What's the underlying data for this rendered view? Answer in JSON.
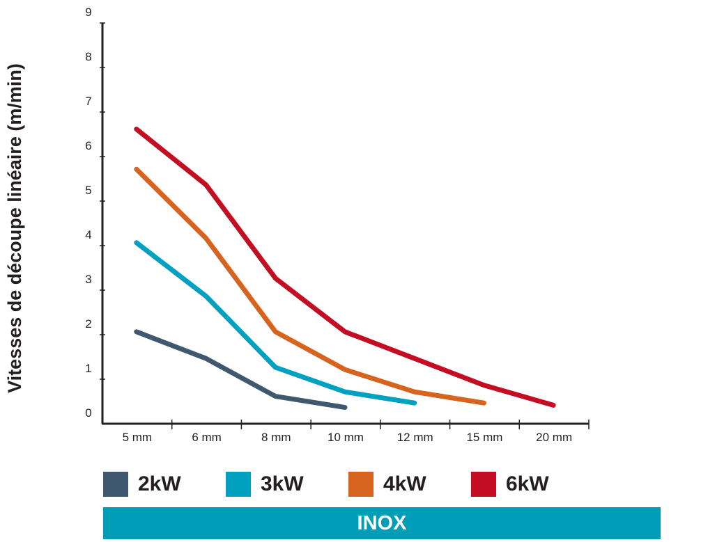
{
  "chart_data": {
    "type": "line",
    "categories": [
      "5 mm",
      "6 mm",
      "8 mm",
      "10 mm",
      "12 mm",
      "15 mm",
      "20 mm"
    ],
    "ylabel": "Vitesses de découpe linéaire (m/min)",
    "xlabel": "",
    "ylim": [
      0,
      9
    ],
    "yticks": [
      0,
      1,
      2,
      3,
      4,
      5,
      6,
      7,
      8,
      9
    ],
    "grid": false,
    "legend_position": "bottom",
    "series": [
      {
        "name": "2kW",
        "color": "#3f5870",
        "values": [
          2.05,
          1.45,
          0.6,
          0.35,
          null,
          null,
          null
        ]
      },
      {
        "name": "3kW",
        "color": "#00a0c0",
        "values": [
          4.05,
          2.85,
          1.25,
          0.7,
          0.45,
          null,
          null
        ]
      },
      {
        "name": "4kW",
        "color": "#d6631e",
        "values": [
          5.7,
          4.15,
          2.05,
          1.2,
          0.7,
          0.45,
          null
        ]
      },
      {
        "name": "6kW",
        "color": "#c30d23",
        "values": [
          6.6,
          5.35,
          3.25,
          2.05,
          1.45,
          0.85,
          0.4
        ]
      }
    ]
  },
  "banner": {
    "label": "INOX",
    "color": "#009db8"
  }
}
